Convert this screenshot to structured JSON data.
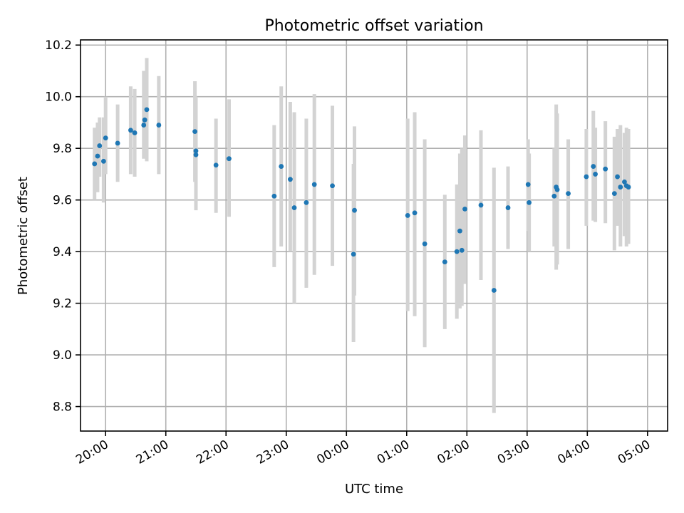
{
  "chart_data": {
    "type": "scatter",
    "title": "Photometric offset variation",
    "xlabel": "UTC time",
    "ylabel": "Photometric offset",
    "x_is_time": true,
    "x_ticks": [
      "20:00",
      "21:00",
      "22:00",
      "23:00",
      "00:00",
      "01:00",
      "02:00",
      "03:00",
      "04:00",
      "05:00"
    ],
    "y_ticks": [
      "8.8",
      "9.0",
      "9.2",
      "9.4",
      "9.6",
      "9.8",
      "10.0",
      "10.2"
    ],
    "xlim": [
      "19:35",
      "05:20"
    ],
    "ylim": [
      8.705,
      10.22
    ],
    "grid": true,
    "marker_color": "#1f77b4",
    "errorbar_color": "#d3d3d3",
    "series": [
      {
        "x": [
          "19:49",
          "19:52",
          "19:54",
          "19:58",
          "20:00",
          "20:12",
          "20:25",
          "20:29",
          "20:38",
          "20:39",
          "20:41",
          "20:53",
          "21:29",
          "21:30",
          "21:30",
          "21:50",
          "22:03",
          "22:48",
          "22:55",
          "23:04",
          "23:08",
          "23:20",
          "23:28",
          "23:46",
          "00:07",
          "00:08",
          "01:01",
          "01:08",
          "01:18",
          "01:38",
          "01:50",
          "01:53",
          "01:55",
          "01:58",
          "02:14",
          "02:27",
          "02:41",
          "03:01",
          "03:02",
          "03:27",
          "03:29",
          "03:30",
          "03:41",
          "03:59",
          "04:06",
          "04:08",
          "04:18",
          "04:27",
          "04:30",
          "04:33",
          "04:37",
          "04:39",
          "04:41"
        ],
        "y": [
          9.74,
          9.77,
          9.81,
          9.75,
          9.84,
          9.82,
          9.87,
          9.86,
          9.89,
          9.91,
          9.95,
          9.89,
          9.865,
          9.79,
          9.775,
          9.735,
          9.76,
          9.615,
          9.73,
          9.68,
          9.57,
          9.59,
          9.66,
          9.655,
          9.39,
          9.56,
          9.54,
          9.55,
          9.43,
          9.36,
          9.4,
          9.48,
          9.405,
          9.565,
          9.58,
          9.25,
          9.57,
          9.66,
          9.59,
          9.615,
          9.65,
          9.64,
          9.625,
          9.69,
          9.73,
          9.7,
          9.72,
          9.625,
          9.69,
          9.65,
          9.67,
          9.655,
          9.65
        ],
        "yerr_low": [
          9.6,
          9.63,
          9.69,
          9.59,
          9.7,
          9.67,
          9.7,
          9.69,
          9.76,
          9.78,
          9.75,
          9.7,
          9.67,
          9.56,
          9.6,
          9.55,
          9.535,
          9.34,
          9.42,
          9.4,
          9.2,
          9.26,
          9.31,
          9.345,
          9.05,
          9.23,
          9.17,
          9.15,
          9.03,
          9.1,
          9.14,
          9.18,
          9.19,
          9.275,
          9.29,
          8.775,
          9.41,
          9.48,
          9.4,
          9.42,
          9.33,
          9.35,
          9.41,
          9.5,
          9.52,
          9.515,
          9.51,
          9.405,
          9.5,
          9.42,
          9.46,
          9.42,
          9.43
        ],
        "yerr_high": [
          9.88,
          9.9,
          9.92,
          9.92,
          10.0,
          9.97,
          10.04,
          10.03,
          10.1,
          10.1,
          10.15,
          10.08,
          10.06,
          10.0,
          9.99,
          9.915,
          9.99,
          9.89,
          10.04,
          9.98,
          9.94,
          9.915,
          10.01,
          9.965,
          9.74,
          9.885,
          9.915,
          9.94,
          9.835,
          9.62,
          9.66,
          9.78,
          9.8,
          9.85,
          9.87,
          9.725,
          9.73,
          9.835,
          9.78,
          9.8,
          9.97,
          9.935,
          9.835,
          9.875,
          9.945,
          9.88,
          9.905,
          9.845,
          9.875,
          9.89,
          9.86,
          9.88,
          9.875
        ]
      }
    ]
  }
}
